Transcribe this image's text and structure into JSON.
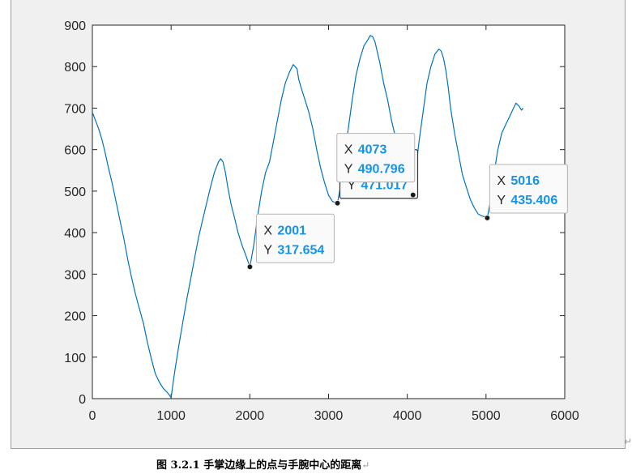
{
  "chart_data": {
    "type": "line",
    "title": "",
    "xlabel": "",
    "ylabel": "",
    "xlim": [
      0,
      6000
    ],
    "ylim": [
      0,
      900
    ],
    "xticks": [
      0,
      1000,
      2000,
      3000,
      4000,
      5000,
      6000
    ],
    "yticks": [
      0,
      100,
      200,
      300,
      400,
      500,
      600,
      700,
      800,
      900
    ],
    "grid": false,
    "line_color": "#0072bd",
    "series": [
      {
        "x": [
          0,
          40,
          80,
          120,
          160,
          200,
          250,
          300,
          350,
          400,
          450,
          500,
          550,
          600,
          650,
          700,
          750,
          800,
          850,
          900,
          950,
          980,
          1000,
          1020,
          1050,
          1100,
          1150,
          1200,
          1250,
          1300,
          1350,
          1400,
          1450,
          1500,
          1550,
          1600,
          1630,
          1660,
          1690,
          1720,
          1760,
          1800,
          1850,
          1900,
          1950,
          2001,
          2050,
          2100,
          2150,
          2200,
          2250,
          2300,
          2350,
          2400,
          2450,
          2500,
          2550,
          2600,
          2620,
          2650,
          2700,
          2750,
          2800,
          2850,
          2900,
          2950,
          3000,
          3050,
          3113,
          3150,
          3200,
          3250,
          3300,
          3350,
          3400,
          3450,
          3500,
          3530,
          3560,
          3590,
          3620,
          3650,
          3700,
          3750,
          3800,
          3850,
          3900,
          3950,
          4000,
          4040,
          4073,
          4100,
          4150,
          4200,
          4250,
          4300,
          4350,
          4400,
          4430,
          4460,
          4490,
          4520,
          4550,
          4600,
          4650,
          4700,
          4750,
          4800,
          4850,
          4900,
          4950,
          5000,
          5016,
          5050,
          5100,
          5150,
          5200,
          5250,
          5300,
          5350,
          5380,
          5420,
          5450,
          5470
        ],
        "y": [
          690,
          670,
          650,
          625,
          595,
          560,
          520,
          475,
          430,
          385,
          335,
          290,
          250,
          215,
          180,
          135,
          95,
          60,
          40,
          25,
          15,
          8,
          2,
          30,
          70,
          130,
          185,
          240,
          290,
          340,
          390,
          430,
          470,
          510,
          545,
          570,
          578,
          570,
          545,
          510,
          470,
          440,
          400,
          370,
          345,
          317.654,
          370,
          440,
          500,
          545,
          570,
          620,
          670,
          720,
          760,
          785,
          805,
          795,
          770,
          750,
          720,
          690,
          650,
          600,
          555,
          520,
          490,
          475,
          471.017,
          510,
          580,
          650,
          720,
          780,
          820,
          850,
          865,
          875,
          872,
          860,
          835,
          810,
          760,
          720,
          670,
          630,
          600,
          560,
          520,
          500,
          490.796,
          540,
          620,
          690,
          760,
          800,
          830,
          842,
          838,
          820,
          790,
          750,
          700,
          640,
          590,
          540,
          510,
          480,
          460,
          445,
          440,
          437,
          435.406,
          470,
          540,
          600,
          640,
          660,
          680,
          700,
          712,
          705,
          695,
          700
        ]
      }
    ],
    "datatips": [
      {
        "x_label": "X",
        "x_value": "2001",
        "y_label": "Y",
        "y_value": "317.654",
        "x": 2001,
        "y": 317.654,
        "selected": false
      },
      {
        "x_label": "X",
        "x_value": "3113",
        "y_label": "Y",
        "y_value": "471.017",
        "x": 3113,
        "y": 471.017,
        "selected": true
      },
      {
        "x_label": "X",
        "x_value": "4073",
        "y_label": "Y",
        "y_value": "490.796",
        "x": 4073,
        "y": 490.796,
        "selected": false
      },
      {
        "x_label": "X",
        "x_value": "5016",
        "y_label": "Y",
        "y_value": "435.406",
        "x": 5016,
        "y": 435.406,
        "selected": false
      }
    ]
  },
  "caption": "图 3.2.1  手掌边缘上的点与手腕中心的距离",
  "caption_return_mark": "↵",
  "frame_return_mark": "↵",
  "colors": {
    "figure_background": "#f0f0f0",
    "axes_background": "#ffffff",
    "tip_background": "#fafafa",
    "tip_value": "#1493e8"
  }
}
